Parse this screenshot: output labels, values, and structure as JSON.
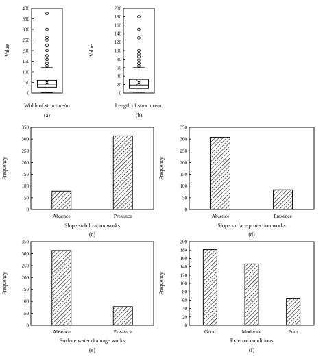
{
  "colors": {
    "ink": "#000000",
    "background": "#ffffff"
  },
  "chart_data": [
    {
      "id": "a",
      "type": "box",
      "panel_label": "(a)",
      "xlabel": "Width of structure/m",
      "ylabel": "Value",
      "ylim": [
        0,
        400
      ],
      "yticks": [
        "0",
        "50",
        "100",
        "150",
        "200",
        "250",
        "300",
        "350",
        "400"
      ],
      "grid": false,
      "box": {
        "whisker_low": 2,
        "q1": 28,
        "median": 42,
        "q3": 60,
        "whisker_high": 120,
        "mean": 50
      },
      "outliers": [
        128,
        140,
        158,
        176,
        200,
        226,
        250,
        262,
        300,
        375
      ]
    },
    {
      "id": "b",
      "type": "box",
      "panel_label": "(b)",
      "xlabel": "Length of structure/m",
      "ylabel": "Value",
      "ylim": [
        0,
        200
      ],
      "yticks": [
        "0",
        "20",
        "40",
        "60",
        "80",
        "100",
        "120",
        "140",
        "160",
        "180",
        "200"
      ],
      "grid": false,
      "box": {
        "whisker_low": 2,
        "q1": 11,
        "median": 19,
        "q3": 32,
        "whisker_high": 60,
        "mean": 25
      },
      "outliers": [
        64,
        70,
        78,
        86,
        93,
        100,
        130,
        150,
        180
      ]
    },
    {
      "id": "c",
      "type": "bar",
      "panel_label": "(c)",
      "xlabel": "Slope stabilization works",
      "ylabel": "Frequency",
      "ylim": [
        0,
        350
      ],
      "yticks": [
        "0",
        "50",
        "100",
        "150",
        "200",
        "250",
        "300",
        "350"
      ],
      "grid": false,
      "categories": [
        "Absence",
        "Presence"
      ],
      "values": [
        78,
        314
      ]
    },
    {
      "id": "d",
      "type": "bar",
      "panel_label": "(d)",
      "xlabel": "Slope surface protection works",
      "ylabel": "Frequency",
      "ylim": [
        0,
        350
      ],
      "yticks": [
        "0",
        "50",
        "100",
        "150",
        "200",
        "250",
        "300",
        "350"
      ],
      "grid": false,
      "categories": [
        "Absence",
        "Presence"
      ],
      "values": [
        308,
        84
      ]
    },
    {
      "id": "e",
      "type": "bar",
      "panel_label": "(e)",
      "xlabel": "Surface water drainage works",
      "ylabel": "Frequency",
      "ylim": [
        0,
        350
      ],
      "yticks": [
        "0",
        "50",
        "100",
        "150",
        "200",
        "250",
        "300",
        "350"
      ],
      "grid": false,
      "categories": [
        "Absence",
        "Presence"
      ],
      "values": [
        313,
        78
      ]
    },
    {
      "id": "f",
      "type": "bar",
      "panel_label": "(f)",
      "xlabel": "External conditions",
      "ylabel": "Frequency",
      "ylim": [
        0,
        200
      ],
      "yticks": [
        "0",
        "20",
        "40",
        "60",
        "80",
        "100",
        "120",
        "140",
        "160",
        "180",
        "200"
      ],
      "grid": false,
      "categories": [
        "Good",
        "Moderate",
        "Poor"
      ],
      "values": [
        181,
        147,
        63
      ]
    }
  ]
}
